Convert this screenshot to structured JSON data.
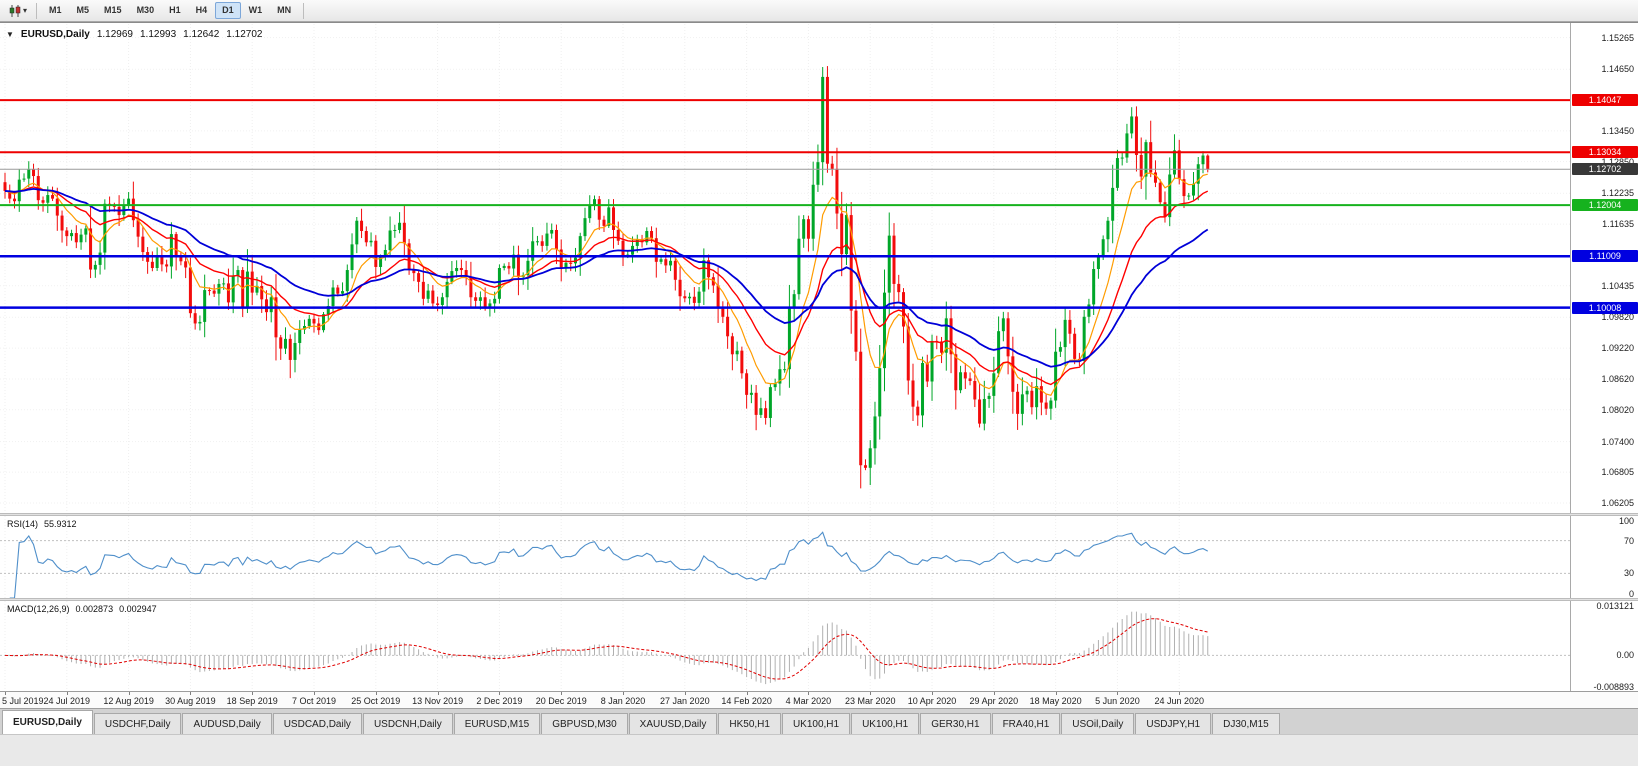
{
  "toolbar": {
    "timeframes": [
      "M1",
      "M5",
      "M15",
      "M30",
      "H1",
      "H4",
      "D1",
      "W1",
      "MN"
    ],
    "active_timeframe": "D1"
  },
  "chart": {
    "symbol": "EURUSD,Daily",
    "open": "1.12969",
    "high": "1.12993",
    "low": "1.12642",
    "close": "1.12702"
  },
  "price_axis": {
    "labels": [
      "1.15265",
      "1.14650",
      "1.13450",
      "1.12850",
      "1.12235",
      "1.11635",
      "1.10435",
      "1.09820",
      "1.09220",
      "1.08620",
      "1.08020",
      "1.07400",
      "1.06805",
      "1.06205"
    ],
    "badges": [
      {
        "text": "1.14047",
        "color": "#ee0000",
        "current": false
      },
      {
        "text": "1.13034",
        "color": "#ee0000",
        "current": false
      },
      {
        "text": "1.12702",
        "color": "#383838",
        "current": true
      },
      {
        "text": "1.12004",
        "color": "#16b21e",
        "current": false
      },
      {
        "text": "1.11009",
        "color": "#0000e0",
        "current": false
      },
      {
        "text": "1.10008",
        "color": "#0000e0",
        "current": false
      }
    ]
  },
  "levels": [
    {
      "price": 1.14047,
      "color": "#ee0000",
      "width": 2
    },
    {
      "price": 1.13034,
      "color": "#ee0000",
      "width": 2
    },
    {
      "price": 1.12004,
      "color": "#16b21e",
      "width": 2
    },
    {
      "price": 1.11009,
      "color": "#0000e0",
      "width": 2.5
    },
    {
      "price": 1.10008,
      "color": "#0000e0",
      "width": 2.5
    }
  ],
  "current_price": 1.12702,
  "rsi": {
    "label": "RSI(14)",
    "value": "55.9312",
    "axis_labels": [
      "100",
      "70",
      "30",
      "0"
    ],
    "levels": [
      70,
      30
    ]
  },
  "macd": {
    "label": "MACD(12,26,9)",
    "value1": "0.002873",
    "value2": "0.002947",
    "axis_labels": [
      "0.013121",
      "0.00",
      "-0.008893"
    ]
  },
  "tabs": [
    {
      "label": "EURUSD,Daily",
      "active": true
    },
    {
      "label": "USDCHF,Daily",
      "active": false
    },
    {
      "label": "AUDUSD,Daily",
      "active": false
    },
    {
      "label": "USDCAD,Daily",
      "active": false
    },
    {
      "label": "USDCNH,Daily",
      "active": false
    },
    {
      "label": "EURUSD,M15",
      "active": false
    },
    {
      "label": "GBPUSD,M30",
      "active": false
    },
    {
      "label": "XAUUSD,Daily",
      "active": false
    },
    {
      "label": "HK50,H1",
      "active": false
    },
    {
      "label": "UK100,H1",
      "active": false
    },
    {
      "label": "UK100,H1",
      "active": false
    },
    {
      "label": "GER30,H1",
      "active": false
    },
    {
      "label": "FRA40,H1",
      "active": false
    },
    {
      "label": "USOil,Daily",
      "active": false
    },
    {
      "label": "USDJPY,H1",
      "active": false
    },
    {
      "label": "DJ30,M15",
      "active": false
    }
  ],
  "colors": {
    "candle_up": "#00a629",
    "candle_down": "#f20c0c",
    "ma_fast": "#ff9c00",
    "ma_mid": "#ff0000",
    "ma_slow": "#0000d8",
    "rsi_line": "#4f8fca",
    "macd_hist": "#b0b0b0",
    "macd_signal": "#e00000"
  },
  "chart_data": {
    "type": "candlestick",
    "title": "EURUSD,Daily",
    "y_axis_range": [
      1.0601,
      1.1553
    ],
    "candles_per_tick": 13,
    "x_tick_labels": [
      "5 Jul 2019",
      "24 Jul 2019",
      "12 Aug 2019",
      "30 Aug 2019",
      "18 Sep 2019",
      "7 Oct 2019",
      "25 Oct 2019",
      "13 Nov 2019",
      "2 Dec 2019",
      "20 Dec 2019",
      "8 Jan 2020",
      "27 Jan 2020",
      "14 Feb 2020",
      "4 Mar 2020",
      "23 Mar 2020",
      "10 Apr 2020",
      "29 Apr 2020",
      "18 May 2020",
      "5 Jun 2020",
      "24 Jun 2020"
    ],
    "first_open": 1.1245,
    "last_candle": {
      "open": 1.12969,
      "high": 1.12993,
      "low": 1.12642,
      "close": 1.12702
    },
    "closes": [
      1.1228,
      1.1213,
      1.1208,
      1.125,
      1.1252,
      1.127,
      1.1257,
      1.121,
      1.1205,
      1.122,
      1.1213,
      1.118,
      1.1151,
      1.114,
      1.1146,
      1.1128,
      1.1143,
      1.1155,
      1.1075,
      1.1084,
      1.1108,
      1.1203,
      1.12,
      1.1197,
      1.1181,
      1.1199,
      1.1213,
      1.1171,
      1.1139,
      1.1109,
      1.109,
      1.1078,
      1.1099,
      1.1085,
      1.1081,
      1.1144,
      1.1101,
      1.1091,
      1.1079,
      1.099,
      1.097,
      1.0973,
      1.1035,
      1.1034,
      1.1028,
      1.1047,
      1.1048,
      1.1011,
      1.1063,
      1.1074,
      1.1003,
      1.1071,
      1.103,
      1.1043,
      1.1017,
      1.0992,
      1.1021,
      1.0943,
      1.0921,
      1.094,
      1.0899,
      1.0932,
      1.0958,
      1.0965,
      1.0979,
      1.097,
      1.0957,
      1.0988,
      1.1004,
      1.104,
      1.1028,
      1.1033,
      1.1074,
      1.1124,
      1.117,
      1.115,
      1.1128,
      1.1131,
      1.108,
      1.1099,
      1.1113,
      1.1151,
      1.1152,
      1.1166,
      1.1126,
      1.1075,
      1.1068,
      1.1051,
      1.1018,
      1.1034,
      1.1009,
      1.1006,
      1.1021,
      1.1051,
      1.1072,
      1.1078,
      1.1074,
      1.1061,
      1.1021,
      1.1014,
      1.1021,
      1.1001,
      1.1009,
      1.1018,
      1.1078,
      1.1082,
      1.1077,
      1.1104,
      1.106,
      1.1064,
      1.1092,
      1.113,
      1.113,
      1.1121,
      1.1145,
      1.1152,
      1.1114,
      1.1078,
      1.1088,
      1.1087,
      1.1098,
      1.114,
      1.1175,
      1.1199,
      1.1212,
      1.1172,
      1.116,
      1.1196,
      1.1152,
      1.1131,
      1.1103,
      1.1104,
      1.1121,
      1.1134,
      1.1128,
      1.115,
      1.1136,
      1.109,
      1.1095,
      1.1083,
      1.1092,
      1.1055,
      1.1023,
      1.1019,
      1.1022,
      1.101,
      1.1032,
      1.1093,
      1.106,
      1.1044,
      1.0999,
      1.0983,
      1.0945,
      1.091,
      1.0917,
      1.0873,
      1.0831,
      1.0835,
      1.0792,
      1.0805,
      1.0786,
      1.0846,
      1.0853,
      1.0881,
      1.0881,
      1.1,
      1.1027,
      1.1135,
      1.1173,
      1.1135,
      1.124,
      1.1284,
      1.145,
      1.1281,
      1.1271,
      1.1184,
      1.1105,
      1.1181,
      1.0995,
      1.0915,
      1.0694,
      1.0689,
      1.0727,
      1.0789,
      1.0883,
      1.103,
      1.1141,
      1.1047,
      1.1031,
      1.0964,
      1.0859,
      1.0808,
      1.0791,
      1.0893,
      1.0857,
      1.0936,
      1.0935,
      1.0913,
      1.098,
      1.091,
      1.084,
      1.0875,
      1.0863,
      1.0858,
      1.0822,
      1.0775,
      1.0823,
      1.0829,
      1.0873,
      1.0955,
      1.098,
      1.0906,
      1.0837,
      1.0794,
      1.0832,
      1.0839,
      1.0807,
      1.0848,
      1.0816,
      1.0804,
      1.082,
      1.0915,
      1.0924,
      1.0977,
      1.095,
      1.0901,
      1.0897,
      1.0983,
      1.1007,
      1.1076,
      1.1101,
      1.1134,
      1.117,
      1.1234,
      1.1292,
      1.1293,
      1.134,
      1.1373,
      1.1298,
      1.1256,
      1.1323,
      1.1264,
      1.1244,
      1.1206,
      1.1177,
      1.126,
      1.1307,
      1.1251,
      1.1218,
      1.1219,
      1.1242,
      1.128,
      1.1297,
      1.12702
    ]
  }
}
